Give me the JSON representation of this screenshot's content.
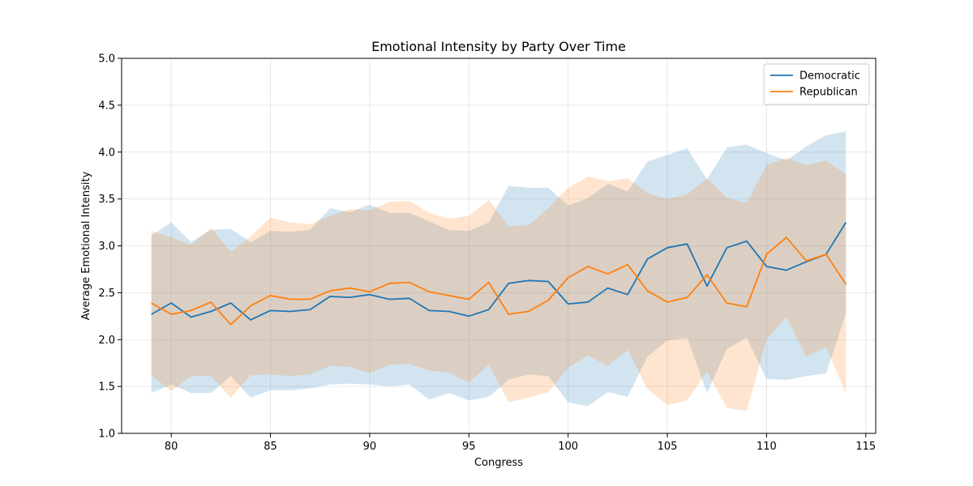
{
  "chart_data": {
    "type": "line",
    "title": "Emotional Intensity by Party Over Time",
    "xlabel": "Congress",
    "ylabel": "Average Emotional Intensity",
    "xlim": [
      77.5,
      115.5
    ],
    "ylim": [
      1.0,
      5.0
    ],
    "xticks": [
      80,
      85,
      90,
      95,
      100,
      105,
      110,
      115
    ],
    "yticks": [
      1.0,
      1.5,
      2.0,
      2.5,
      3.0,
      3.5,
      4.0,
      4.5,
      5.0
    ],
    "grid": true,
    "legend_position": "top-right",
    "x": [
      79,
      80,
      81,
      82,
      83,
      84,
      85,
      86,
      87,
      88,
      89,
      90,
      91,
      92,
      93,
      94,
      95,
      96,
      97,
      98,
      99,
      100,
      101,
      102,
      103,
      104,
      105,
      106,
      107,
      108,
      109,
      110,
      111,
      112,
      113,
      114
    ],
    "series": [
      {
        "name": "Democratic",
        "color": "#1f77b4",
        "values": [
          2.27,
          2.39,
          2.24,
          2.3,
          2.39,
          2.21,
          2.31,
          2.3,
          2.32,
          2.46,
          2.45,
          2.48,
          2.43,
          2.44,
          2.31,
          2.3,
          2.25,
          2.32,
          2.6,
          2.63,
          2.62,
          2.38,
          2.4,
          2.55,
          2.48,
          2.86,
          2.98,
          3.02,
          2.57,
          2.98,
          3.05,
          2.78,
          2.74,
          2.83,
          2.91,
          3.25
        ],
        "lower": [
          1.43,
          1.52,
          1.43,
          1.43,
          1.61,
          1.38,
          1.46,
          1.46,
          1.48,
          1.52,
          1.53,
          1.52,
          1.5,
          1.52,
          1.36,
          1.43,
          1.35,
          1.39,
          1.57,
          1.63,
          1.61,
          1.33,
          1.29,
          1.44,
          1.39,
          1.82,
          1.99,
          2.02,
          1.43,
          1.9,
          2.02,
          1.58,
          1.57,
          1.61,
          1.64,
          2.28
        ],
        "upper": [
          3.11,
          3.25,
          3.04,
          3.17,
          3.18,
          3.04,
          3.16,
          3.15,
          3.17,
          3.4,
          3.36,
          3.44,
          3.35,
          3.35,
          3.26,
          3.17,
          3.16,
          3.25,
          3.64,
          3.62,
          3.62,
          3.43,
          3.51,
          3.66,
          3.58,
          3.9,
          3.97,
          4.04,
          3.71,
          4.05,
          4.08,
          3.99,
          3.91,
          4.06,
          4.18,
          4.22
        ]
      },
      {
        "name": "Republican",
        "color": "#ff7f0e",
        "values": [
          2.39,
          2.27,
          2.31,
          2.4,
          2.16,
          2.36,
          2.47,
          2.43,
          2.43,
          2.52,
          2.55,
          2.51,
          2.6,
          2.61,
          2.51,
          2.47,
          2.43,
          2.61,
          2.27,
          2.3,
          2.42,
          2.66,
          2.78,
          2.7,
          2.8,
          2.52,
          2.4,
          2.45,
          2.69,
          2.39,
          2.35,
          2.91,
          3.09,
          2.84,
          2.91,
          2.59
        ],
        "lower": [
          1.62,
          1.45,
          1.61,
          1.61,
          1.38,
          1.62,
          1.63,
          1.61,
          1.63,
          1.72,
          1.71,
          1.64,
          1.73,
          1.74,
          1.67,
          1.65,
          1.54,
          1.73,
          1.33,
          1.38,
          1.44,
          1.7,
          1.83,
          1.72,
          1.89,
          1.47,
          1.3,
          1.35,
          1.66,
          1.27,
          1.24,
          2.0,
          2.24,
          1.82,
          1.92,
          1.43
        ],
        "upper": [
          3.16,
          3.09,
          3.01,
          3.19,
          2.94,
          3.1,
          3.3,
          3.25,
          3.23,
          3.32,
          3.39,
          3.38,
          3.47,
          3.48,
          3.35,
          3.29,
          3.32,
          3.49,
          3.21,
          3.22,
          3.4,
          3.62,
          3.74,
          3.69,
          3.72,
          3.56,
          3.5,
          3.55,
          3.72,
          3.51,
          3.46,
          3.86,
          3.94,
          3.86,
          3.91,
          3.76
        ]
      }
    ]
  }
}
